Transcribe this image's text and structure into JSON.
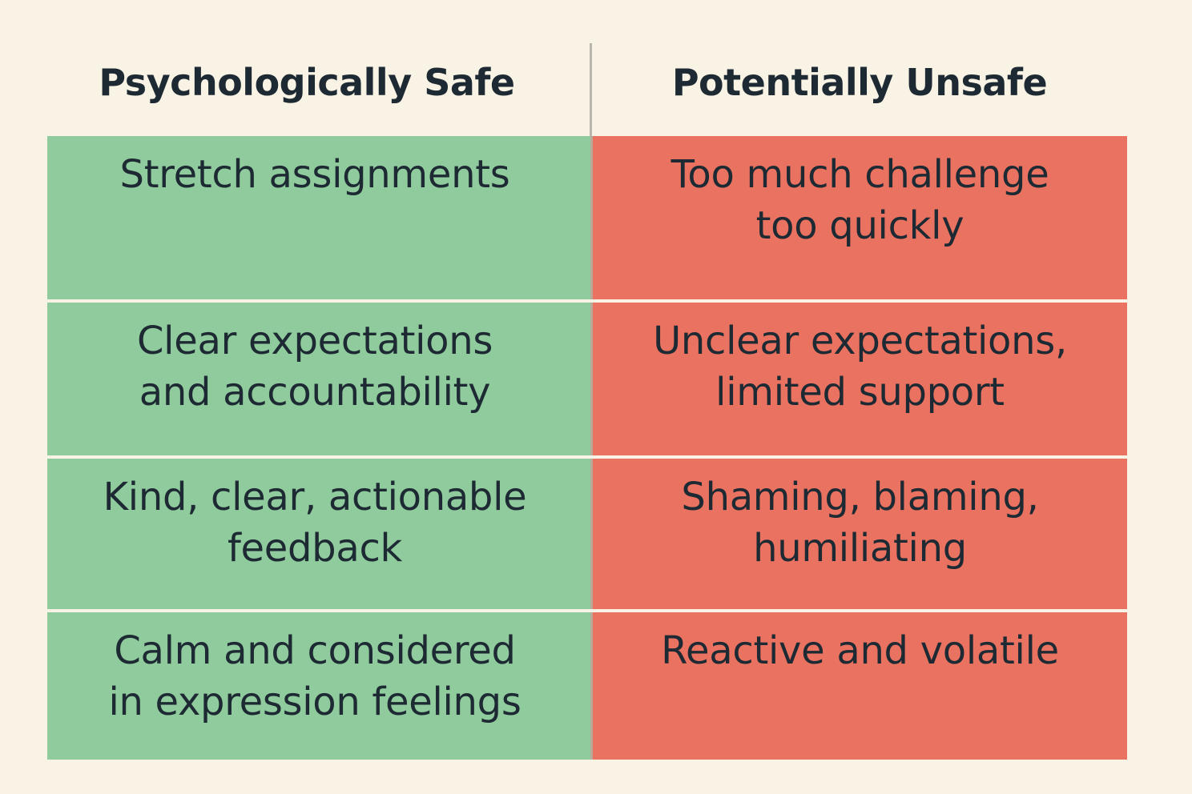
{
  "headers": {
    "safe": "Psychologically Safe",
    "unsafe": "Potentially Unsafe"
  },
  "rows": [
    {
      "safe": "Stretch assignments",
      "unsafe": "Too much challenge\ntoo quickly"
    },
    {
      "safe": "Clear expectations\nand accountability",
      "unsafe": "Unclear expectations,\nlimited support"
    },
    {
      "safe": "Kind, clear, actionable\nfeedback",
      "unsafe": "Shaming, blaming,\nhumiliating"
    },
    {
      "safe": "Calm and considered\nin expression feelings",
      "unsafe": "Reactive and volatile"
    }
  ],
  "colors": {
    "background": "#f8f3e4",
    "safe": "#90cb9d",
    "unsafe": "#ea7260",
    "text": "#1e2a33"
  }
}
